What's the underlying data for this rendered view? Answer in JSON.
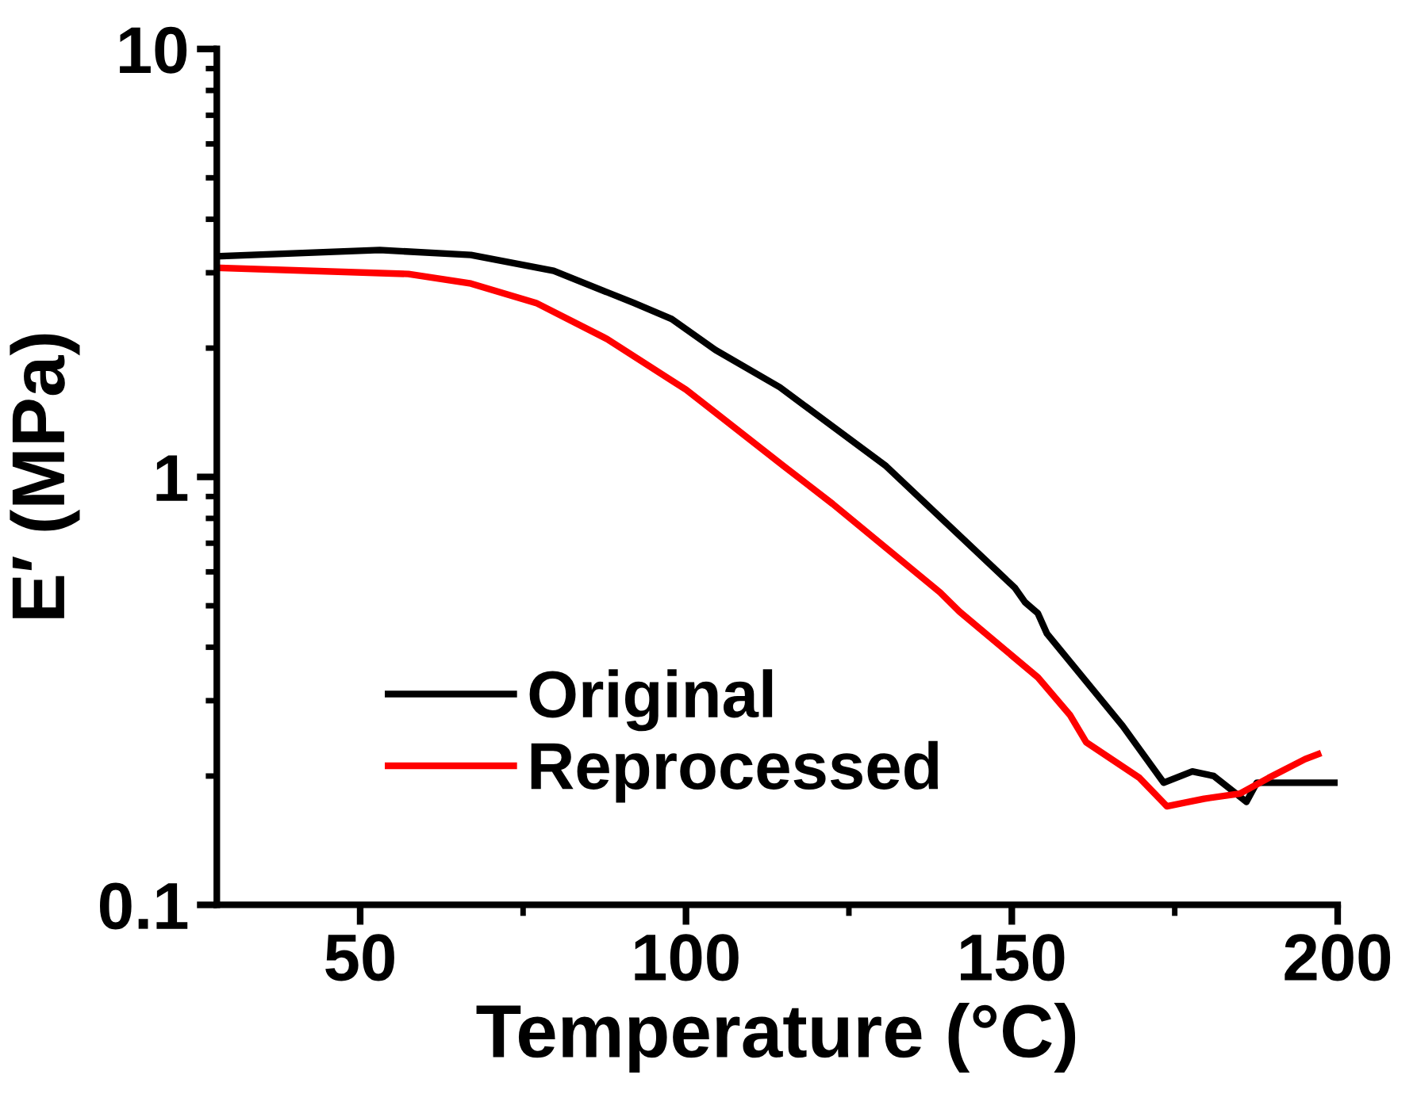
{
  "chart_data": {
    "type": "line",
    "xlabel": "Temperature (°C)",
    "ylabel": "E′ (MPa)",
    "log": "y",
    "xlim": [
      28,
      200
    ],
    "ylim": [
      0.1,
      10
    ],
    "xticks": [
      50,
      100,
      150,
      200
    ],
    "yticks": [
      0.1,
      1,
      10
    ],
    "grid": false,
    "legend": "bottom",
    "marker": "none",
    "line_style": "solid",
    "series": [
      {
        "name": "Original",
        "color": "#000000",
        "x": [
          28.5,
          53,
          67,
          79.7,
          92,
          97.8,
          104.5,
          114.4,
          130.7,
          150.5,
          152,
          154,
          155.4,
          167,
          173.3,
          177.7,
          181,
          184.4,
          186,
          187.6,
          199.7
        ],
        "values": [
          3.28,
          3.39,
          3.3,
          3.03,
          2.55,
          2.34,
          1.98,
          1.62,
          1.06,
          0.55,
          0.51,
          0.48,
          0.43,
          0.262,
          0.193,
          0.205,
          0.2,
          0.182,
          0.174,
          0.193,
          0.193
        ]
      },
      {
        "name": "Reprocessed",
        "color": "#ff0000",
        "x": [
          28.5,
          57.4,
          67,
          77,
          87.9,
          97.8,
          100,
          115,
          122.5,
          139,
          142,
          154,
          158.9,
          161.4,
          169.6,
          173.8,
          179.5,
          185,
          189.4,
          195,
          197
        ],
        "values": [
          3.08,
          2.98,
          2.83,
          2.55,
          2.1,
          1.68,
          1.6,
          1.06,
          0.865,
          0.537,
          0.484,
          0.34,
          0.278,
          0.24,
          0.198,
          0.17,
          0.177,
          0.182,
          0.198,
          0.219,
          0.225
        ]
      }
    ]
  }
}
